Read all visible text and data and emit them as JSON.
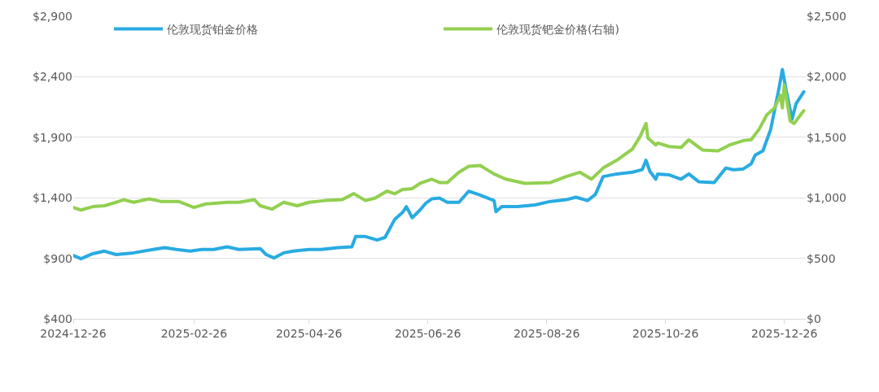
{
  "chart_data": {
    "type": "line",
    "xlim": [
      "2024-12-26",
      "2026-01-06"
    ],
    "xticks": [
      "2024-12-26",
      "2025-02-26",
      "2025-04-26",
      "2025-06-26",
      "2025-08-26",
      "2025-10-26",
      "2025-12-26"
    ],
    "ylim": [
      400,
      2900
    ],
    "yticks": [
      {
        "value": 400,
        "label": "$400"
      },
      {
        "value": 900,
        "label": "$900"
      },
      {
        "value": 1400,
        "label": "$1,400"
      },
      {
        "value": 1900,
        "label": "$1,900"
      },
      {
        "value": 2400,
        "label": "$2,400"
      },
      {
        "value": 2900,
        "label": "$2,900"
      }
    ],
    "y2lim": [
      0,
      2500
    ],
    "y2ticks": [
      {
        "value": 0,
        "label": "$0"
      },
      {
        "value": 500,
        "label": "$500"
      },
      {
        "value": 1000,
        "label": "$1,000"
      },
      {
        "value": 1500,
        "label": "$1,500"
      },
      {
        "value": 2000,
        "label": "$2,000"
      },
      {
        "value": 2500,
        "label": "$2,500"
      }
    ],
    "grid": "y",
    "legend": "top",
    "marker": "none",
    "line_style": "solid",
    "series": [
      {
        "name": "伦敦现货铂金价格",
        "color": "#29abe2",
        "x": [
          "2024-12-26",
          "2024-12-30",
          "2025-01-05",
          "2025-01-11",
          "2025-01-17",
          "2025-01-26",
          "2025-02-05",
          "2025-02-11",
          "2025-02-17",
          "2025-02-24",
          "2025-03-02",
          "2025-03-08",
          "2025-03-15",
          "2025-03-21",
          "2025-04-01",
          "2025-04-04",
          "2025-04-08",
          "2025-04-13",
          "2025-04-18",
          "2025-04-26",
          "2025-05-02",
          "2025-05-11",
          "2025-05-18",
          "2025-05-20",
          "2025-05-25",
          "2025-05-31",
          "2025-06-04",
          "2025-06-09",
          "2025-06-13",
          "2025-06-15",
          "2025-06-18",
          "2025-06-22",
          "2025-06-25",
          "2025-06-28",
          "2025-07-02",
          "2025-07-06",
          "2025-07-12",
          "2025-07-17",
          "2025-07-22",
          "2025-07-30",
          "2025-07-31",
          "2025-08-03",
          "2025-08-11",
          "2025-08-20",
          "2025-08-28",
          "2025-09-05",
          "2025-09-10",
          "2025-09-16",
          "2025-09-20",
          "2025-09-24",
          "2025-10-01",
          "2025-10-09",
          "2025-10-14",
          "2025-10-16",
          "2025-10-18",
          "2025-10-21",
          "2025-10-22",
          "2025-10-28",
          "2025-11-03",
          "2025-11-07",
          "2025-11-12",
          "2025-11-20",
          "2025-11-26",
          "2025-11-30",
          "2025-12-05",
          "2025-12-09",
          "2025-12-11",
          "2025-12-15",
          "2025-12-19",
          "2025-12-23",
          "2025-12-25",
          "2025-12-27",
          "2025-12-30",
          "2026-01-01",
          "2026-01-05"
        ],
        "values": [
          924,
          896,
          938,
          959,
          931,
          945,
          973,
          988,
          973,
          959,
          973,
          973,
          995,
          973,
          980,
          931,
          903,
          945,
          959,
          973,
          973,
          988,
          995,
          1080,
          1080,
          1051,
          1072,
          1221,
          1278,
          1327,
          1235,
          1299,
          1356,
          1391,
          1398,
          1363,
          1363,
          1455,
          1427,
          1377,
          1285,
          1327,
          1327,
          1341,
          1370,
          1384,
          1405,
          1377,
          1427,
          1575,
          1597,
          1611,
          1632,
          1710,
          1618,
          1554,
          1597,
          1589,
          1554,
          1597,
          1533,
          1526,
          1646,
          1632,
          1639,
          1681,
          1752,
          1788,
          1965,
          2283,
          2460,
          2283,
          2050,
          2177,
          2276
        ]
      },
      {
        "name": "伦敦现货钯金价格(右轴)",
        "color": "#92d050",
        "axis": "y2",
        "x": [
          "2024-12-26",
          "2024-12-30",
          "2025-01-05",
          "2025-01-11",
          "2025-01-17",
          "2025-01-21",
          "2025-01-26",
          "2025-02-03",
          "2025-02-09",
          "2025-02-18",
          "2025-02-26",
          "2025-03-04",
          "2025-03-15",
          "2025-03-21",
          "2025-03-29",
          "2025-04-01",
          "2025-04-07",
          "2025-04-13",
          "2025-04-20",
          "2025-04-26",
          "2025-05-04",
          "2025-05-13",
          "2025-05-19",
          "2025-05-25",
          "2025-05-30",
          "2025-06-05",
          "2025-06-09",
          "2025-06-13",
          "2025-06-18",
          "2025-06-22",
          "2025-06-28",
          "2025-07-02",
          "2025-07-06",
          "2025-07-12",
          "2025-07-17",
          "2025-07-23",
          "2025-07-25",
          "2025-07-30",
          "2025-08-05",
          "2025-08-15",
          "2025-08-28",
          "2025-09-05",
          "2025-09-12",
          "2025-09-18",
          "2025-09-24",
          "2025-10-01",
          "2025-10-09",
          "2025-10-13",
          "2025-10-16",
          "2025-10-17",
          "2025-10-21",
          "2025-10-22",
          "2025-10-28",
          "2025-11-03",
          "2025-11-07",
          "2025-11-14",
          "2025-11-22",
          "2025-11-28",
          "2025-12-05",
          "2025-12-09",
          "2025-12-13",
          "2025-12-17",
          "2025-12-21",
          "2025-12-24",
          "2025-12-25",
          "2025-12-26",
          "2025-12-29",
          "2025-12-31",
          "2026-01-05"
        ],
        "values": [
          920,
          899,
          927,
          934,
          963,
          984,
          963,
          991,
          970,
          970,
          920,
          949,
          963,
          963,
          984,
          934,
          906,
          963,
          934,
          963,
          977,
          984,
          1034,
          977,
          998,
          1055,
          1034,
          1069,
          1076,
          1119,
          1154,
          1126,
          1126,
          1211,
          1260,
          1267,
          1246,
          1197,
          1154,
          1119,
          1126,
          1175,
          1211,
          1154,
          1246,
          1310,
          1402,
          1508,
          1614,
          1494,
          1437,
          1452,
          1423,
          1416,
          1480,
          1395,
          1388,
          1437,
          1473,
          1480,
          1565,
          1685,
          1742,
          1848,
          1742,
          1933,
          1636,
          1614,
          1720
        ]
      }
    ]
  }
}
